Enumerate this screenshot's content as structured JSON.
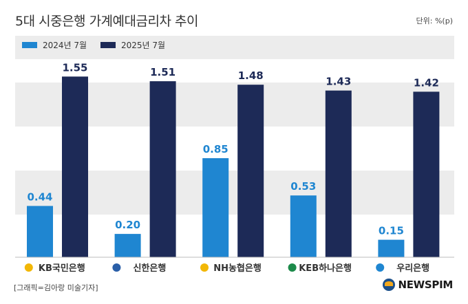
{
  "title": "5대 시중은행 가계예대금리차 추이",
  "unit": "단위: %(p)",
  "source": "[그래픽=김아랑 미술기자]",
  "brand": "NEWSPIM",
  "colors": {
    "series1": "#1f86d1",
    "series2": "#1d2a57",
    "band": "#ececec",
    "axis": "#bbbbbb"
  },
  "chart_data": {
    "type": "bar",
    "title": "5대 시중은행 가계예대금리차 추이",
    "ylabel": "단위: %(p)",
    "categories": [
      "KB국민은행",
      "신한은행",
      "NH농협은행",
      "KEB하나은행",
      "우리은행"
    ],
    "series": [
      {
        "name": "2024년 7월",
        "values": [
          0.44,
          0.2,
          0.85,
          0.53,
          0.15
        ]
      },
      {
        "name": "2025년 7월",
        "values": [
          1.55,
          1.51,
          1.48,
          1.43,
          1.42
        ]
      }
    ],
    "ylim": [
      0,
      1.9
    ],
    "legend": "top-left",
    "grid": true
  },
  "category_icons": [
    "kb-star-icon",
    "shinhan-icon",
    "nh-icon",
    "keb-hana-icon",
    "woori-icon"
  ]
}
